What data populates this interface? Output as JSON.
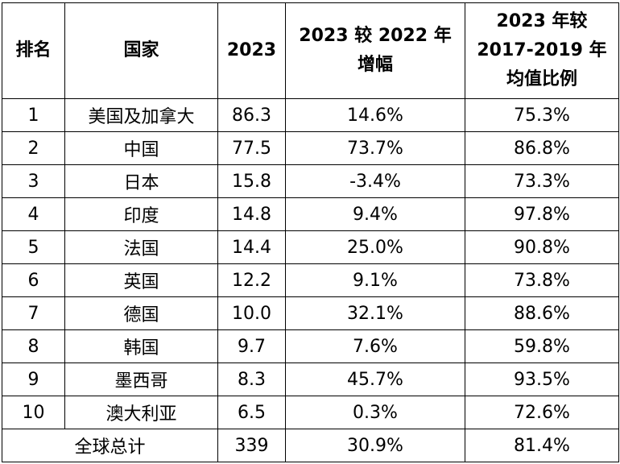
{
  "headers": {
    "rank": "排名",
    "country": "国家",
    "year": "2023",
    "growth": [
      "2023 较 2022 年",
      "增幅"
    ],
    "ratio": [
      "2023 年较",
      "2017-2019 年",
      "均值比例"
    ]
  },
  "rows": [
    {
      "rank": "1",
      "country": "美国及加拿大",
      "value": "86.3",
      "growth": "14.6%",
      "ratio": "75.3%"
    },
    {
      "rank": "2",
      "country": "中国",
      "value": "77.5",
      "growth": "73.7%",
      "ratio": "86.8%"
    },
    {
      "rank": "3",
      "country": "日本",
      "value": "15.8",
      "growth": "-3.4%",
      "ratio": "73.3%"
    },
    {
      "rank": "4",
      "country": "印度",
      "value": "14.8",
      "growth": "9.4%",
      "ratio": "97.8%"
    },
    {
      "rank": "5",
      "country": "法国",
      "value": "14.4",
      "growth": "25.0%",
      "ratio": "90.8%"
    },
    {
      "rank": "6",
      "country": "英国",
      "value": "12.2",
      "growth": "9.1%",
      "ratio": "73.8%"
    },
    {
      "rank": "7",
      "country": "德国",
      "value": "10.0",
      "growth": "32.1%",
      "ratio": "88.6%"
    },
    {
      "rank": "8",
      "country": "韩国",
      "value": "9.7",
      "growth": "7.6%",
      "ratio": "59.8%"
    },
    {
      "rank": "9",
      "country": "墨西哥",
      "value": "8.3",
      "growth": "45.7%",
      "ratio": "93.5%"
    },
    {
      "rank": "10",
      "country": "澳大利亚",
      "value": "6.5",
      "growth": "0.3%",
      "ratio": "72.6%"
    }
  ],
  "total": {
    "label": "全球总计",
    "value": "339",
    "growth": "30.9%",
    "ratio": "81.4%"
  }
}
